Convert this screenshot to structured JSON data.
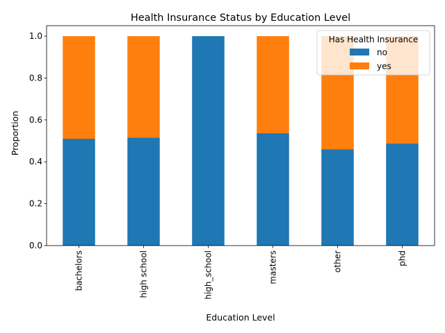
{
  "chart_data": {
    "type": "bar",
    "stacked": true,
    "title": "Health Insurance Status by Education Level",
    "xlabel": "Education Level",
    "ylabel": "Proportion",
    "ylim": [
      0,
      1.05
    ],
    "yticks": [
      "0.0",
      "0.2",
      "0.4",
      "0.6",
      "0.8",
      "1.0"
    ],
    "categories": [
      "bachelors",
      "high school",
      "high_school",
      "masters",
      "other",
      "phd"
    ],
    "series": [
      {
        "name": "no",
        "color": "#1f77b4",
        "values": [
          0.51,
          0.515,
          1.0,
          0.537,
          0.46,
          0.488
        ]
      },
      {
        "name": "yes",
        "color": "#ff7f0e",
        "values": [
          0.49,
          0.485,
          0.0,
          0.463,
          0.54,
          0.512
        ]
      }
    ],
    "legend": {
      "title": "Has Health Insurance",
      "position": "top-right"
    },
    "grid": false
  }
}
